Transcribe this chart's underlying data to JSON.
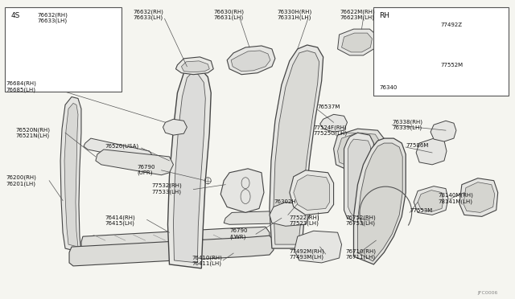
{
  "bg_color": "#f5f5f0",
  "line_color": "#444444",
  "text_color": "#111111",
  "fig_width": 6.4,
  "fig_height": 3.72,
  "dpi": 100,
  "watermark": "JFC0006",
  "inset1_label": "4S",
  "inset2_label": "RH",
  "font_size": 5.5,
  "font_size_small": 5.0
}
